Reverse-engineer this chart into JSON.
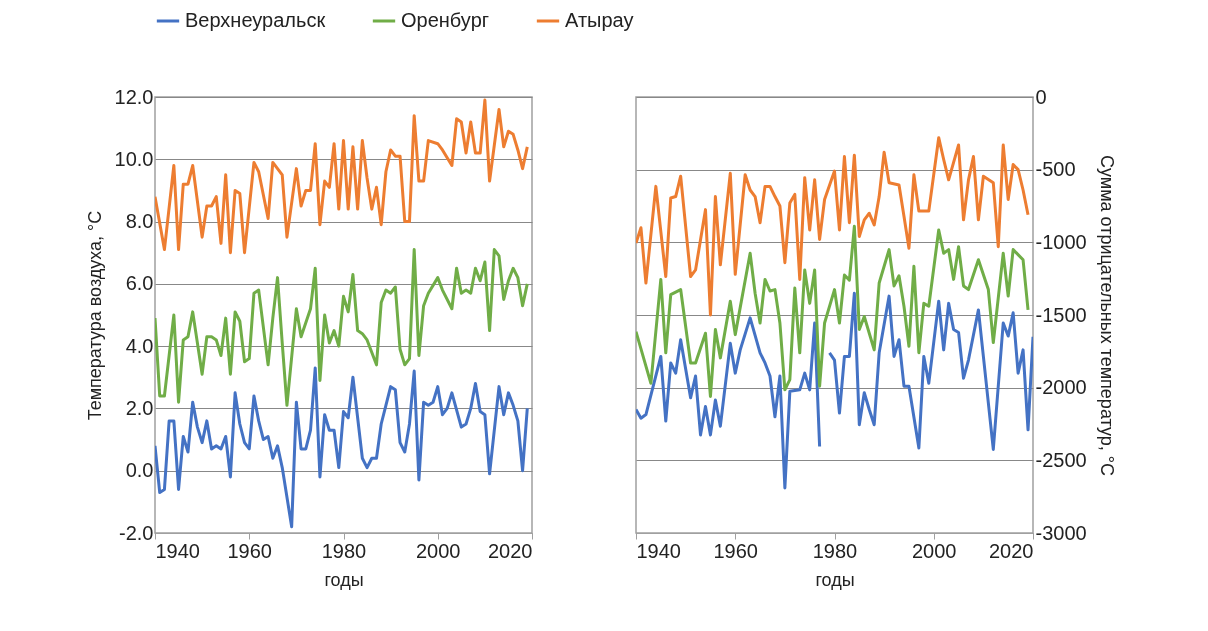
{
  "chart_data": [
    {
      "type": "line",
      "xlabel": "годы",
      "ylabel": "Температура воздуха, °C",
      "xlim": [
        1940,
        2020
      ],
      "xticks": [
        1940,
        1960,
        1980,
        2000,
        2020
      ],
      "ylim": [
        -2,
        12
      ],
      "yticks": [
        {
          "value": -2,
          "label": "-2.0"
        },
        {
          "value": 0,
          "label": "0.0"
        },
        {
          "value": 2,
          "label": "2.0"
        },
        {
          "value": 4,
          "label": "4.0"
        },
        {
          "value": 6,
          "label": "6.0"
        },
        {
          "value": 8,
          "label": "8.0"
        },
        {
          "value": 10,
          "label": "10.0"
        },
        {
          "value": 12,
          "label": "12.0"
        }
      ],
      "grid": "y",
      "legend": "top",
      "series": [
        {
          "name": "Верхнеуральск",
          "color": "#4472c4",
          "x": [
            1940,
            1941,
            1942,
            1943,
            1944,
            1945,
            1946,
            1947,
            1948,
            1949,
            1950,
            1951,
            1952,
            1953,
            1954,
            1955,
            1956,
            1957,
            1958,
            1959,
            1960,
            1961,
            1962,
            1963,
            1964,
            1965,
            1966,
            1967,
            1969,
            1970,
            1971,
            1972,
            1973,
            1974,
            1975,
            1976,
            1977,
            1978,
            1979,
            1980,
            1981,
            1982,
            1984,
            1985,
            1986,
            1987,
            1988,
            1989,
            1990,
            1991,
            1992,
            1993,
            1994,
            1995,
            1996,
            1997,
            1998,
            1999,
            2000,
            2001,
            2002,
            2003,
            2005,
            2006,
            2007,
            2008,
            2009,
            2010,
            2011,
            2013,
            2014,
            2015,
            2016,
            2017,
            2018,
            2019
          ],
          "values": [
            0.8,
            -0.7,
            -0.6,
            1.6,
            1.6,
            -0.6,
            1.1,
            0.6,
            2.2,
            1.4,
            0.9,
            1.6,
            0.7,
            0.8,
            0.7,
            1.1,
            -0.2,
            2.5,
            1.5,
            0.9,
            0.7,
            2.4,
            1.6,
            1.0,
            1.1,
            0.4,
            0.8,
            0.1,
            -1.8,
            2.2,
            0.7,
            0.7,
            1.3,
            3.3,
            -0.2,
            1.8,
            1.3,
            1.3,
            0.1,
            1.9,
            1.7,
            3.0,
            0.4,
            0.1,
            0.4,
            0.4,
            1.5,
            2.1,
            2.7,
            2.6,
            0.9,
            0.6,
            1.5,
            3.2,
            -0.3,
            2.2,
            2.1,
            2.2,
            2.7,
            1.8,
            2.0,
            2.5,
            1.4,
            1.5,
            2.0,
            2.8,
            1.9,
            1.8,
            -0.1,
            2.7,
            1.8,
            2.5,
            2.1,
            1.6,
            0.0,
            2.0
          ]
        },
        {
          "name": "Оренбург",
          "color": "#70ad47",
          "x": [
            1940,
            1941,
            1942,
            1944,
            1945,
            1946,
            1947,
            1948,
            1950,
            1951,
            1952,
            1953,
            1954,
            1955,
            1956,
            1957,
            1958,
            1959,
            1960,
            1961,
            1962,
            1964,
            1965,
            1966,
            1967,
            1968,
            1970,
            1971,
            1973,
            1974,
            1975,
            1976,
            1977,
            1978,
            1979,
            1980,
            1981,
            1982,
            1983,
            1984,
            1985,
            1987,
            1988,
            1989,
            1990,
            1991,
            1992,
            1993,
            1994,
            1995,
            1996,
            1997,
            1998,
            2000,
            2001,
            2003,
            2004,
            2005,
            2006,
            2007,
            2008,
            2009,
            2010,
            2011,
            2012,
            2013,
            2014,
            2015,
            2016,
            2017,
            2018,
            2019
          ],
          "values": [
            4.9,
            2.4,
            2.4,
            5.0,
            2.2,
            4.2,
            4.3,
            5.1,
            3.1,
            4.3,
            4.3,
            4.2,
            3.7,
            4.9,
            3.1,
            5.1,
            4.8,
            3.5,
            3.6,
            5.7,
            5.8,
            3.4,
            4.9,
            6.2,
            4.1,
            2.1,
            5.2,
            4.3,
            5.2,
            6.5,
            2.9,
            5.0,
            4.1,
            4.5,
            4.0,
            5.6,
            5.1,
            6.3,
            4.5,
            4.4,
            4.2,
            3.4,
            5.4,
            5.8,
            5.7,
            5.9,
            3.9,
            3.4,
            3.6,
            7.1,
            3.7,
            5.3,
            5.7,
            6.2,
            5.8,
            5.2,
            6.5,
            5.7,
            5.8,
            5.7,
            6.5,
            6.1,
            6.7,
            4.5,
            7.1,
            6.9,
            5.5,
            6.1,
            6.5,
            6.2,
            5.3,
            6.0
          ]
        },
        {
          "name": "Атырау",
          "color": "#ed7d31",
          "x": [
            1940,
            1942,
            1944,
            1945,
            1946,
            1947,
            1948,
            1950,
            1951,
            1952,
            1953,
            1954,
            1955,
            1956,
            1957,
            1958,
            1959,
            1961,
            1962,
            1964,
            1965,
            1967,
            1968,
            1970,
            1971,
            1972,
            1973,
            1974,
            1975,
            1976,
            1977,
            1978,
            1979,
            1980,
            1981,
            1982,
            1983,
            1984,
            1985,
            1986,
            1987,
            1988,
            1989,
            1990,
            1991,
            1992,
            1993,
            1994,
            1995,
            1996,
            1997,
            1998,
            2000,
            2001,
            2003,
            2004,
            2005,
            2006,
            2007,
            2008,
            2009,
            2010,
            2011,
            2013,
            2014,
            2015,
            2016,
            2017,
            2018,
            2019
          ],
          "values": [
            8.8,
            7.1,
            9.8,
            7.1,
            9.2,
            9.2,
            9.8,
            7.5,
            8.5,
            8.5,
            8.8,
            7.3,
            9.5,
            7.0,
            9.0,
            8.9,
            7.0,
            9.9,
            9.6,
            8.1,
            9.9,
            9.5,
            7.5,
            9.7,
            8.5,
            9.0,
            9.0,
            10.5,
            7.9,
            9.3,
            9.1,
            10.5,
            8.4,
            10.6,
            8.4,
            10.4,
            8.4,
            10.6,
            9.4,
            8.4,
            9.1,
            7.9,
            9.6,
            10.3,
            10.1,
            10.1,
            8.0,
            8.0,
            11.4,
            9.3,
            9.3,
            10.6,
            10.5,
            10.3,
            9.8,
            11.3,
            11.2,
            10.2,
            11.2,
            10.2,
            10.2,
            11.9,
            9.3,
            11.6,
            10.4,
            10.9,
            10.8,
            10.3,
            9.7,
            10.4
          ]
        }
      ]
    },
    {
      "type": "line",
      "xlabel": "годы",
      "y2label": "Сумма отрицательных температур, °C",
      "xlim": [
        1940,
        2020
      ],
      "xticks": [
        1940,
        1960,
        1980,
        2000,
        2020
      ],
      "y2lim": [
        -3000,
        0
      ],
      "y2ticks": [
        -3000,
        -2500,
        -2000,
        -1500,
        -1000,
        -500,
        0
      ],
      "grid": "y",
      "legend": "top",
      "series": [
        {
          "name": "Верхнеуральск",
          "color": "#4472c4",
          "axis": "y2",
          "x": [
            1940,
            1941,
            1942,
            1945,
            1946,
            1947,
            1948,
            1949,
            1951,
            1952,
            1953,
            1954,
            1955,
            1956,
            1957,
            1959,
            1960,
            1961,
            1963,
            1965,
            1966,
            1967,
            1968,
            1969,
            1970,
            1971,
            1973,
            1974,
            1975,
            1976,
            1977,
            1978,
            1979,
            1980,
            1981,
            1982,
            1983,
            1984,
            1985,
            1986,
            1987,
            1988,
            1989,
            1991,
            1992,
            1993,
            1994,
            1995,
            1997,
            1998,
            1999,
            2001,
            2002,
            2003,
            2004,
            2005,
            2006,
            2007,
            2009,
            2010,
            2012,
            2014,
            2015,
            2016,
            2017,
            2018,
            2019,
            2020
          ],
          "values": [
            -2150,
            -2210,
            -2185,
            -1785,
            -2230,
            -1830,
            -1900,
            -1670,
            -2070,
            -1920,
            -2325,
            -2130,
            -2325,
            -2085,
            -2265,
            -1695,
            -1900,
            -1740,
            -1520,
            -1760,
            -1830,
            -1920,
            -2200,
            -1920,
            -2690,
            -2025,
            -2015,
            -1900,
            -2015,
            -1555,
            -2405,
            null,
            -1760,
            -1810,
            -2175,
            -1785,
            -1785,
            -1350,
            -2255,
            -2035,
            -2150,
            -2255,
            -1760,
            -1370,
            -1785,
            -1670,
            -1990,
            -1990,
            -2415,
            -1785,
            -1970,
            -1405,
            -1740,
            -1420,
            -1600,
            -1620,
            -1935,
            -1810,
            -1465,
            -1785,
            -2425,
            -1555,
            -1645,
            -1485,
            -1900,
            -1740,
            -2290,
            -1650
          ]
        },
        {
          "name": "Оренбург",
          "color": "#70ad47",
          "axis": "y2",
          "x": [
            1940,
            1943,
            1945,
            1946,
            1947,
            1949,
            1951,
            1952,
            1954,
            1955,
            1956,
            1957,
            1959,
            1960,
            1963,
            1964,
            1965,
            1966,
            1967,
            1968,
            1969,
            1970,
            1971,
            1972,
            1973,
            1974,
            1975,
            1976,
            1977,
            1978,
            1980,
            1981,
            1982,
            1983,
            1984,
            1985,
            1986,
            1988,
            1989,
            1991,
            1992,
            1993,
            1994,
            1995,
            1996,
            1997,
            1998,
            1999,
            2001,
            2002,
            2003,
            2004,
            2005,
            2006,
            2007,
            2009,
            2011,
            2012,
            2014,
            2015,
            2016,
            2018,
            2019
          ],
          "values": [
            -1615,
            -1970,
            -1255,
            -1760,
            -1360,
            -1325,
            -1830,
            -1830,
            -1625,
            -2060,
            -1600,
            -1795,
            -1405,
            -1635,
            -1075,
            -1350,
            -1555,
            -1255,
            -1335,
            -1325,
            -1555,
            -2015,
            -1945,
            -1315,
            -1760,
            -1190,
            -1420,
            -1190,
            -1990,
            -1555,
            -1325,
            -1555,
            -1225,
            -1260,
            -890,
            -1600,
            -1510,
            -1740,
            -1280,
            -1050,
            -1300,
            -1230,
            -1440,
            -1715,
            -1165,
            -1760,
            -1420,
            -1440,
            -915,
            -1075,
            -1050,
            -1255,
            -1030,
            -1300,
            -1325,
            -1120,
            -1325,
            -1690,
            -1075,
            -1370,
            -1050,
            -1120,
            -1465
          ]
        },
        {
          "name": "Атырау",
          "color": "#ed7d31",
          "axis": "y2",
          "x": [
            1940,
            1941,
            1942,
            1944,
            1946,
            1947,
            1948,
            1949,
            1951,
            1952,
            1954,
            1955,
            1956,
            1957,
            1959,
            1960,
            1962,
            1963,
            1964,
            1965,
            1966,
            1967,
            1968,
            1969,
            1970,
            1971,
            1972,
            1973,
            1974,
            1975,
            1976,
            1977,
            1978,
            1980,
            1981,
            1982,
            1983,
            1984,
            1985,
            1986,
            1987,
            1988,
            1989,
            1990,
            1991,
            1993,
            1994,
            1995,
            1996,
            1997,
            1999,
            2001,
            2002,
            2003,
            2005,
            2006,
            2007,
            2008,
            2009,
            2010,
            2012,
            2013,
            2014,
            2015,
            2016,
            2017,
            2018,
            2019
          ],
          "values": [
            -1005,
            -900,
            -1280,
            -615,
            -1235,
            -695,
            -685,
            -545,
            -1235,
            -1190,
            -775,
            -1500,
            -685,
            -1155,
            -525,
            -1220,
            -535,
            -640,
            -685,
            -865,
            -615,
            -615,
            -685,
            -750,
            -1140,
            -730,
            -670,
            -1255,
            -555,
            -915,
            -570,
            -980,
            -705,
            -510,
            -915,
            -410,
            -865,
            -400,
            -960,
            -845,
            -800,
            -880,
            -685,
            -380,
            -590,
            -605,
            -820,
            -1040,
            -535,
            -785,
            -785,
            -280,
            -430,
            -570,
            -330,
            -845,
            -570,
            -410,
            -845,
            -545,
            -590,
            -1030,
            -330,
            -705,
            -465,
            -500,
            -640,
            -810
          ]
        }
      ]
    }
  ]
}
